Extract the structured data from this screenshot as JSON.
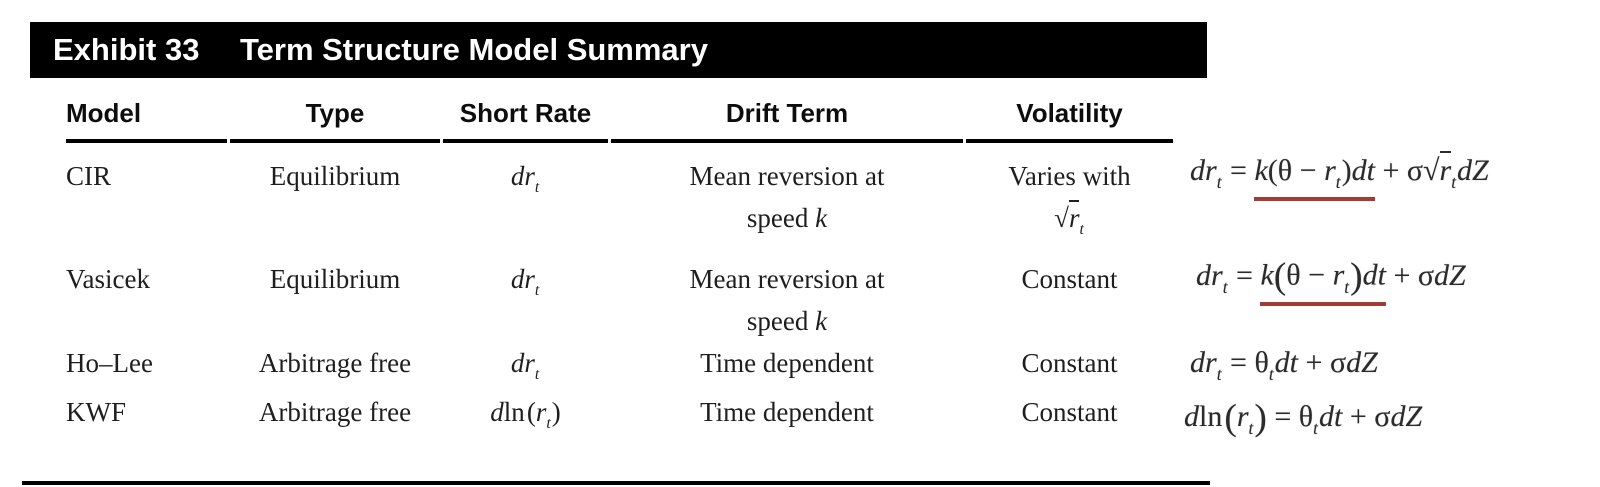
{
  "exhibit": {
    "label": "Exhibit 33",
    "title": "Term Structure Model Summary"
  },
  "colors": {
    "title_bar_bg": "#000000",
    "title_text": "#ffffff",
    "body_text": "#1e1e1e",
    "formula_text": "#2b2b2b",
    "red_underline": "#a23b33"
  },
  "table": {
    "headers": [
      "Model",
      "Type",
      "Short Rate",
      "Drift Term",
      "Volatility"
    ],
    "rows": [
      {
        "model": "CIR",
        "type": "Equilibrium",
        "short_rate": [
          [
            {
              "t": "dr",
              "c": "i"
            },
            {
              "t": "t",
              "c": "i s"
            }
          ]
        ],
        "drift": [
          [
            {
              "t": "Mean reversion at"
            }
          ],
          [
            {
              "t": "speed "
            },
            {
              "t": "k",
              "c": "i"
            }
          ]
        ],
        "volatility": [
          [
            {
              "t": "Varies with"
            }
          ],
          [
            {
              "t": "√",
              "c": "rad"
            },
            {
              "t": "r",
              "c": "i ov"
            },
            {
              "t": "t",
              "c": "i s"
            }
          ]
        ]
      },
      {
        "model": "Vasicek",
        "type": "Equilibrium",
        "short_rate": [
          [
            {
              "t": "dr",
              "c": "i"
            },
            {
              "t": "t",
              "c": "i s"
            }
          ]
        ],
        "drift": [
          [
            {
              "t": "Mean reversion at"
            }
          ],
          [
            {
              "t": "speed "
            },
            {
              "t": "k",
              "c": "i"
            }
          ]
        ],
        "volatility": [
          [
            {
              "t": "Constant"
            }
          ]
        ]
      },
      {
        "model": "Ho–Lee",
        "type": "Arbitrage free",
        "short_rate": [
          [
            {
              "t": "dr",
              "c": "i"
            },
            {
              "t": "t",
              "c": "i s"
            }
          ]
        ],
        "drift": [
          [
            {
              "t": "Time dependent"
            }
          ]
        ],
        "volatility": [
          [
            {
              "t": "Constant"
            }
          ]
        ]
      },
      {
        "model": "KWF",
        "type": "Arbitrage free",
        "short_rate": [
          [
            {
              "t": "d",
              "c": "i"
            },
            {
              "t": "ln",
              "c": "fn"
            },
            {
              "t": "("
            },
            {
              "t": "r",
              "c": "i"
            },
            {
              "t": "t",
              "c": "i s"
            },
            {
              "t": ")"
            }
          ]
        ],
        "drift": [
          [
            {
              "t": "Time dependent"
            }
          ]
        ],
        "volatility": [
          [
            {
              "t": "Constant"
            }
          ]
        ]
      }
    ]
  },
  "formulas": [
    {
      "model": "CIR",
      "lines": [
        [
          {
            "t": "dr",
            "c": "i"
          },
          {
            "t": "t",
            "c": "i s"
          },
          {
            "t": " = "
          },
          {
            "t": "k",
            "c": "i",
            "u": 1
          },
          {
            "t": "(θ − ",
            "u": 1
          },
          {
            "t": "r",
            "c": "i",
            "u": 1
          },
          {
            "t": "t",
            "c": "i s",
            "u": 1
          },
          {
            "t": ")",
            "u": 1
          },
          {
            "t": "dt",
            "c": "i",
            "u": 1
          },
          {
            "t": " + "
          },
          {
            "t": "σ"
          },
          {
            "t": "√",
            "c": "rad"
          },
          {
            "t": "r",
            "c": "i ov"
          },
          {
            "t": "t",
            "c": "i s"
          },
          {
            "t": "dZ",
            "c": "i"
          }
        ]
      ]
    },
    {
      "model": "Vasicek",
      "lines": [
        [
          {
            "t": "dr",
            "c": "i"
          },
          {
            "t": "t",
            "c": "i s"
          },
          {
            "t": " = "
          },
          {
            "t": "k",
            "c": "i",
            "u": 1
          },
          {
            "t": "(",
            "c": "b",
            "u": 1
          },
          {
            "t": "θ − ",
            "u": 1
          },
          {
            "t": "r",
            "c": "i",
            "u": 1
          },
          {
            "t": "t",
            "c": "i s",
            "u": 1
          },
          {
            "t": ")",
            "c": "b",
            "u": 1
          },
          {
            "t": "dt",
            "c": "i",
            "u": 1
          },
          {
            "t": " + "
          },
          {
            "t": "σ"
          },
          {
            "t": "dZ",
            "c": "i"
          }
        ]
      ]
    },
    {
      "model": "Ho–Lee",
      "lines": [
        [
          {
            "t": "dr",
            "c": "i"
          },
          {
            "t": "t",
            "c": "i s"
          },
          {
            "t": " = "
          },
          {
            "t": "θ"
          },
          {
            "t": "t",
            "c": "i s"
          },
          {
            "t": "dt",
            "c": "i"
          },
          {
            "t": " + "
          },
          {
            "t": "σ"
          },
          {
            "t": "dZ",
            "c": "i"
          }
        ]
      ]
    },
    {
      "model": "KWF",
      "lines": [
        [
          {
            "t": "d",
            "c": "i"
          },
          {
            "t": "ln",
            "c": "fn"
          },
          {
            "t": "(",
            "c": "b"
          },
          {
            "t": "r",
            "c": "i"
          },
          {
            "t": "t",
            "c": "i s"
          },
          {
            "t": ")",
            "c": "b"
          },
          {
            "t": " = "
          },
          {
            "t": "θ"
          },
          {
            "t": "t",
            "c": "i s"
          },
          {
            "t": "dt",
            "c": "i"
          },
          {
            "t": " + "
          },
          {
            "t": "σ"
          },
          {
            "t": "dZ",
            "c": "i"
          }
        ]
      ]
    }
  ]
}
